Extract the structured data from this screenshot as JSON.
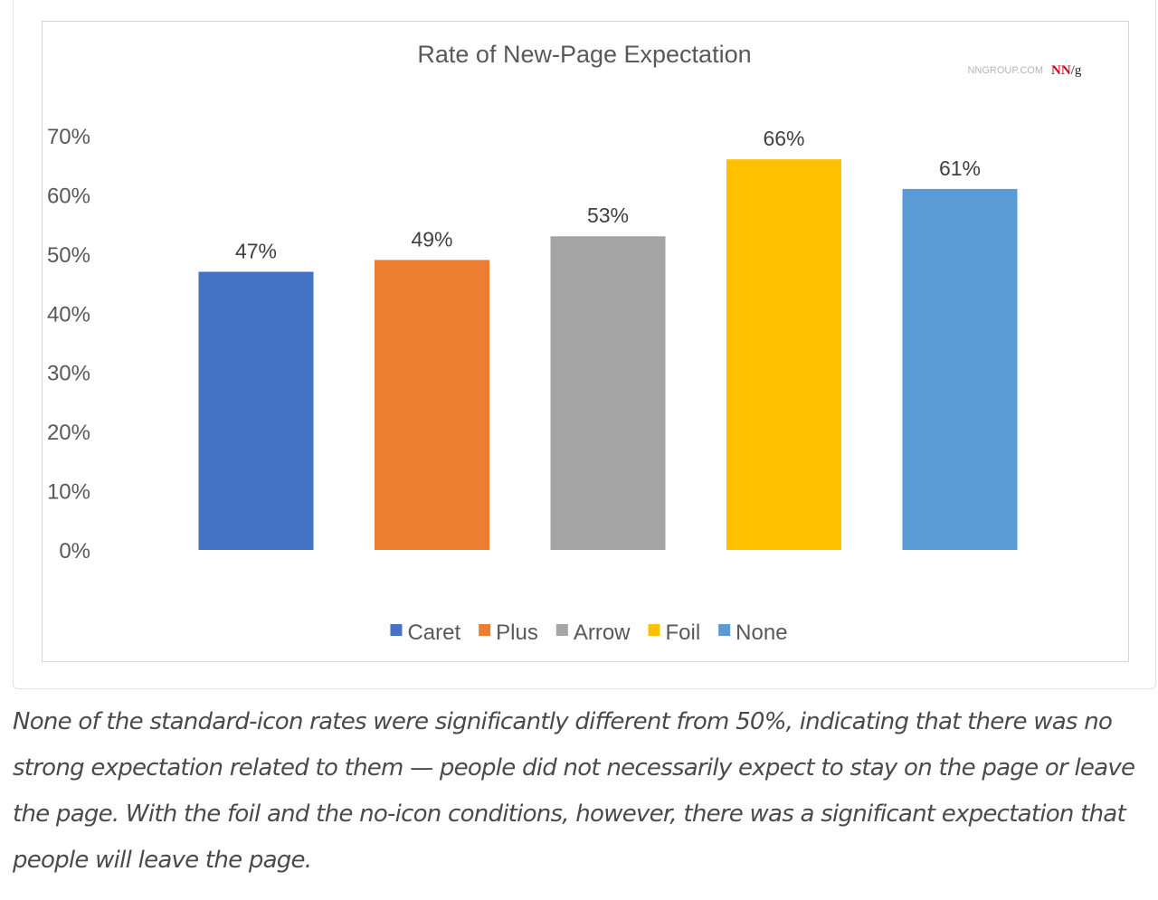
{
  "chart_data": {
    "type": "bar",
    "title": "Rate of New-Page Expectation",
    "source_label": "NNGROUP.COM",
    "logo": {
      "text_a": "NN",
      "text_b": "/g",
      "accent": "#d0021b"
    },
    "categories": [
      "Caret",
      "Plus",
      "Arrow",
      "Foil",
      "None"
    ],
    "values": [
      47,
      49,
      53,
      66,
      61
    ],
    "data_labels": [
      "47%",
      "49%",
      "53%",
      "66%",
      "61%"
    ],
    "colors": [
      "#4472c4",
      "#ed7d31",
      "#a5a5a5",
      "#ffc000",
      "#5b9bd5"
    ],
    "ylim": [
      0,
      70
    ],
    "yticks": [
      0,
      10,
      20,
      30,
      40,
      50,
      60,
      70
    ],
    "ytick_labels": [
      "0%",
      "10%",
      "20%",
      "30%",
      "40%",
      "50%",
      "60%",
      "70%"
    ],
    "grid": false,
    "legend": "bottom",
    "xlabel": "",
    "ylabel": ""
  },
  "caption": "None of the standard-icon rates were significantly different from 50%, indicating that there was no strong expectation related to them — people did not necessarily expect to stay on the page or leave the page. With the foil and the no-icon conditions, however, there was a significant expectation that people will leave the page."
}
